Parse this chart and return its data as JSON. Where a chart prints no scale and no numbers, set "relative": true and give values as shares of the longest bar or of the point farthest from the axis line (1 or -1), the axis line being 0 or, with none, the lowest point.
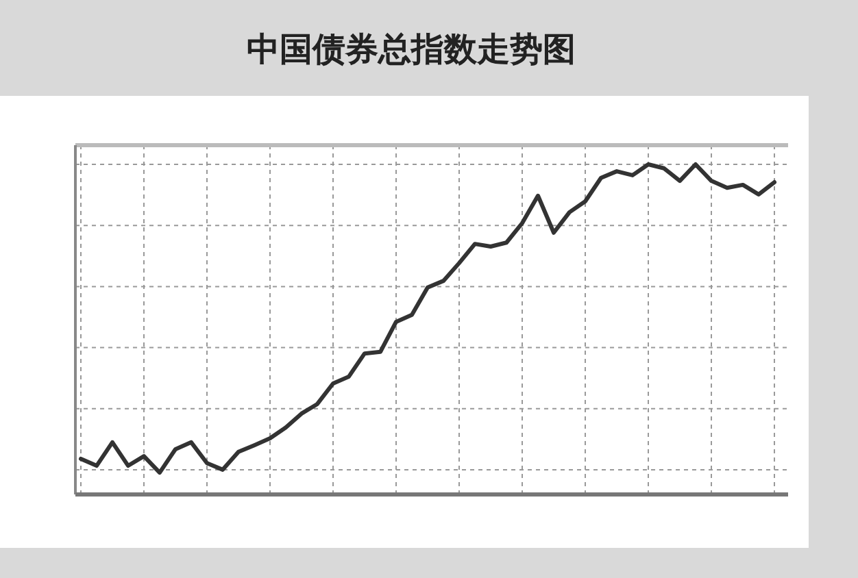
{
  "chart_data": {
    "type": "line",
    "title": "中国债券总指数走势图",
    "relative": true,
    "grid": true,
    "marker": "none",
    "line_style": "solid",
    "categories": [
      null,
      null,
      null,
      null,
      null,
      null,
      null,
      null,
      null,
      null,
      null,
      null,
      null,
      null,
      null,
      null,
      null,
      null,
      null,
      null,
      null,
      null,
      null,
      null,
      null,
      null,
      null,
      null,
      null,
      null,
      null,
      null,
      null,
      null,
      null,
      null,
      null,
      null,
      null,
      null,
      null,
      null,
      null,
      null,
      null
    ],
    "series": [
      {
        "color": "#333333",
        "values": [
          0.108,
          0.087,
          0.158,
          0.087,
          0.116,
          0.066,
          0.137,
          0.158,
          0.095,
          0.075,
          0.129,
          0.149,
          0.17,
          0.203,
          0.245,
          0.274,
          0.336,
          0.357,
          0.427,
          0.432,
          0.523,
          0.544,
          0.627,
          0.647,
          0.701,
          0.759,
          0.751,
          0.763,
          0.822,
          0.905,
          0.793,
          0.855,
          0.888,
          0.959,
          0.979,
          0.967,
          1,
          0.988,
          0.95,
          1,
          0.95,
          0.929,
          0.938,
          0.909,
          0.946
        ]
      }
    ]
  }
}
